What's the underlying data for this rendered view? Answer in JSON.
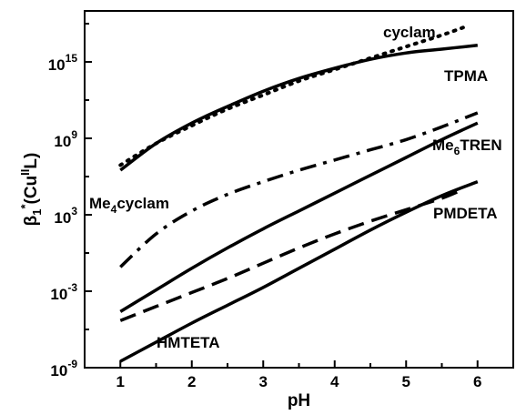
{
  "chart_data": {
    "type": "line",
    "title": "",
    "xlabel": "pH",
    "ylabel_parts": {
      "base": "β",
      "sub1": "1",
      "sup_star": "*",
      "open": "(Cu",
      "sup_ox": "II",
      "close": "L)"
    },
    "y_scale": "log",
    "xlim": [
      0.5,
      6.5
    ],
    "ylim_exponent": [
      -9,
      19
    ],
    "x_ticks": [
      "1",
      "2",
      "3",
      "4",
      "5",
      "6"
    ],
    "y_ticks": [
      {
        "base": "10",
        "exp": "-9",
        "value": -9
      },
      {
        "base": "10",
        "exp": "-3",
        "value": -3
      },
      {
        "base": "10",
        "exp": "3",
        "value": 3
      },
      {
        "base": "10",
        "exp": "9",
        "value": 9
      },
      {
        "base": "10",
        "exp": "15",
        "value": 15
      }
    ],
    "grid": false,
    "legend": "none",
    "series": [
      {
        "label": "cyclam",
        "style": "dotted",
        "x": [
          1.0,
          1.5,
          2.0,
          2.5,
          3.0,
          3.5,
          4.0,
          4.5,
          5.0,
          5.5,
          5.8
        ],
        "log10_y": [
          6.9,
          8.6,
          10.0,
          11.3,
          12.4,
          13.5,
          14.4,
          15.3,
          16.2,
          17.1,
          17.7
        ]
      },
      {
        "label": "TPMA",
        "style": "solid",
        "x": [
          1.0,
          1.5,
          2.0,
          2.5,
          3.0,
          3.5,
          4.0,
          4.5,
          5.0,
          5.5,
          6.0
        ],
        "log10_y": [
          6.5,
          8.6,
          10.2,
          11.5,
          12.7,
          13.7,
          14.5,
          15.2,
          15.7,
          16.0,
          16.3
        ]
      },
      {
        "label": "Me4cyclam",
        "label_main": "Me",
        "label_sub": "4",
        "label_tail": "cyclam",
        "style": "dash-dot",
        "x": [
          1.0,
          1.5,
          2.0,
          2.5,
          3.0,
          3.5,
          4.0,
          4.5,
          5.0,
          5.5,
          6.0
        ],
        "log10_y": [
          -1.1,
          1.5,
          3.3,
          4.6,
          5.6,
          6.5,
          7.3,
          8.1,
          8.9,
          9.9,
          11.0
        ]
      },
      {
        "label": "Me6TREN",
        "label_main": "Me",
        "label_sub": "6",
        "label_tail": "TREN",
        "style": "solid",
        "x": [
          1.0,
          1.5,
          2.0,
          2.5,
          3.0,
          3.5,
          4.0,
          4.5,
          5.0,
          5.5,
          6.0
        ],
        "log10_y": [
          -4.6,
          -2.9,
          -1.2,
          0.4,
          1.9,
          3.3,
          4.7,
          6.1,
          7.5,
          8.9,
          10.2
        ]
      },
      {
        "label": "PMDETA",
        "style": "dashed",
        "x": [
          1.0,
          1.5,
          2.0,
          2.5,
          3.0,
          3.5,
          4.0,
          4.5,
          5.0,
          5.5,
          5.8
        ],
        "log10_y": [
          -5.3,
          -4.2,
          -3.1,
          -2.0,
          -0.8,
          0.4,
          1.5,
          2.5,
          3.4,
          4.3,
          5.0
        ]
      },
      {
        "label": "HMTETA",
        "style": "solid",
        "x": [
          1.0,
          1.5,
          2.0,
          2.5,
          3.0,
          3.5,
          4.0,
          4.5,
          5.0,
          5.5,
          6.0
        ],
        "log10_y": [
          -8.5,
          -7.0,
          -5.5,
          -4.1,
          -2.7,
          -1.2,
          0.3,
          1.8,
          3.2,
          4.5,
          5.6
        ]
      }
    ],
    "series_label_placement": {
      "cyclam": "top-right, above curve",
      "TPMA": "right, below curve end",
      "Me4cyclam": "left of dash-dot curve",
      "Me6TREN": "right, above solid curve",
      "PMDETA": "right, below dashed curve",
      "HMTETA": "bottom, right of lowest curve"
    }
  }
}
